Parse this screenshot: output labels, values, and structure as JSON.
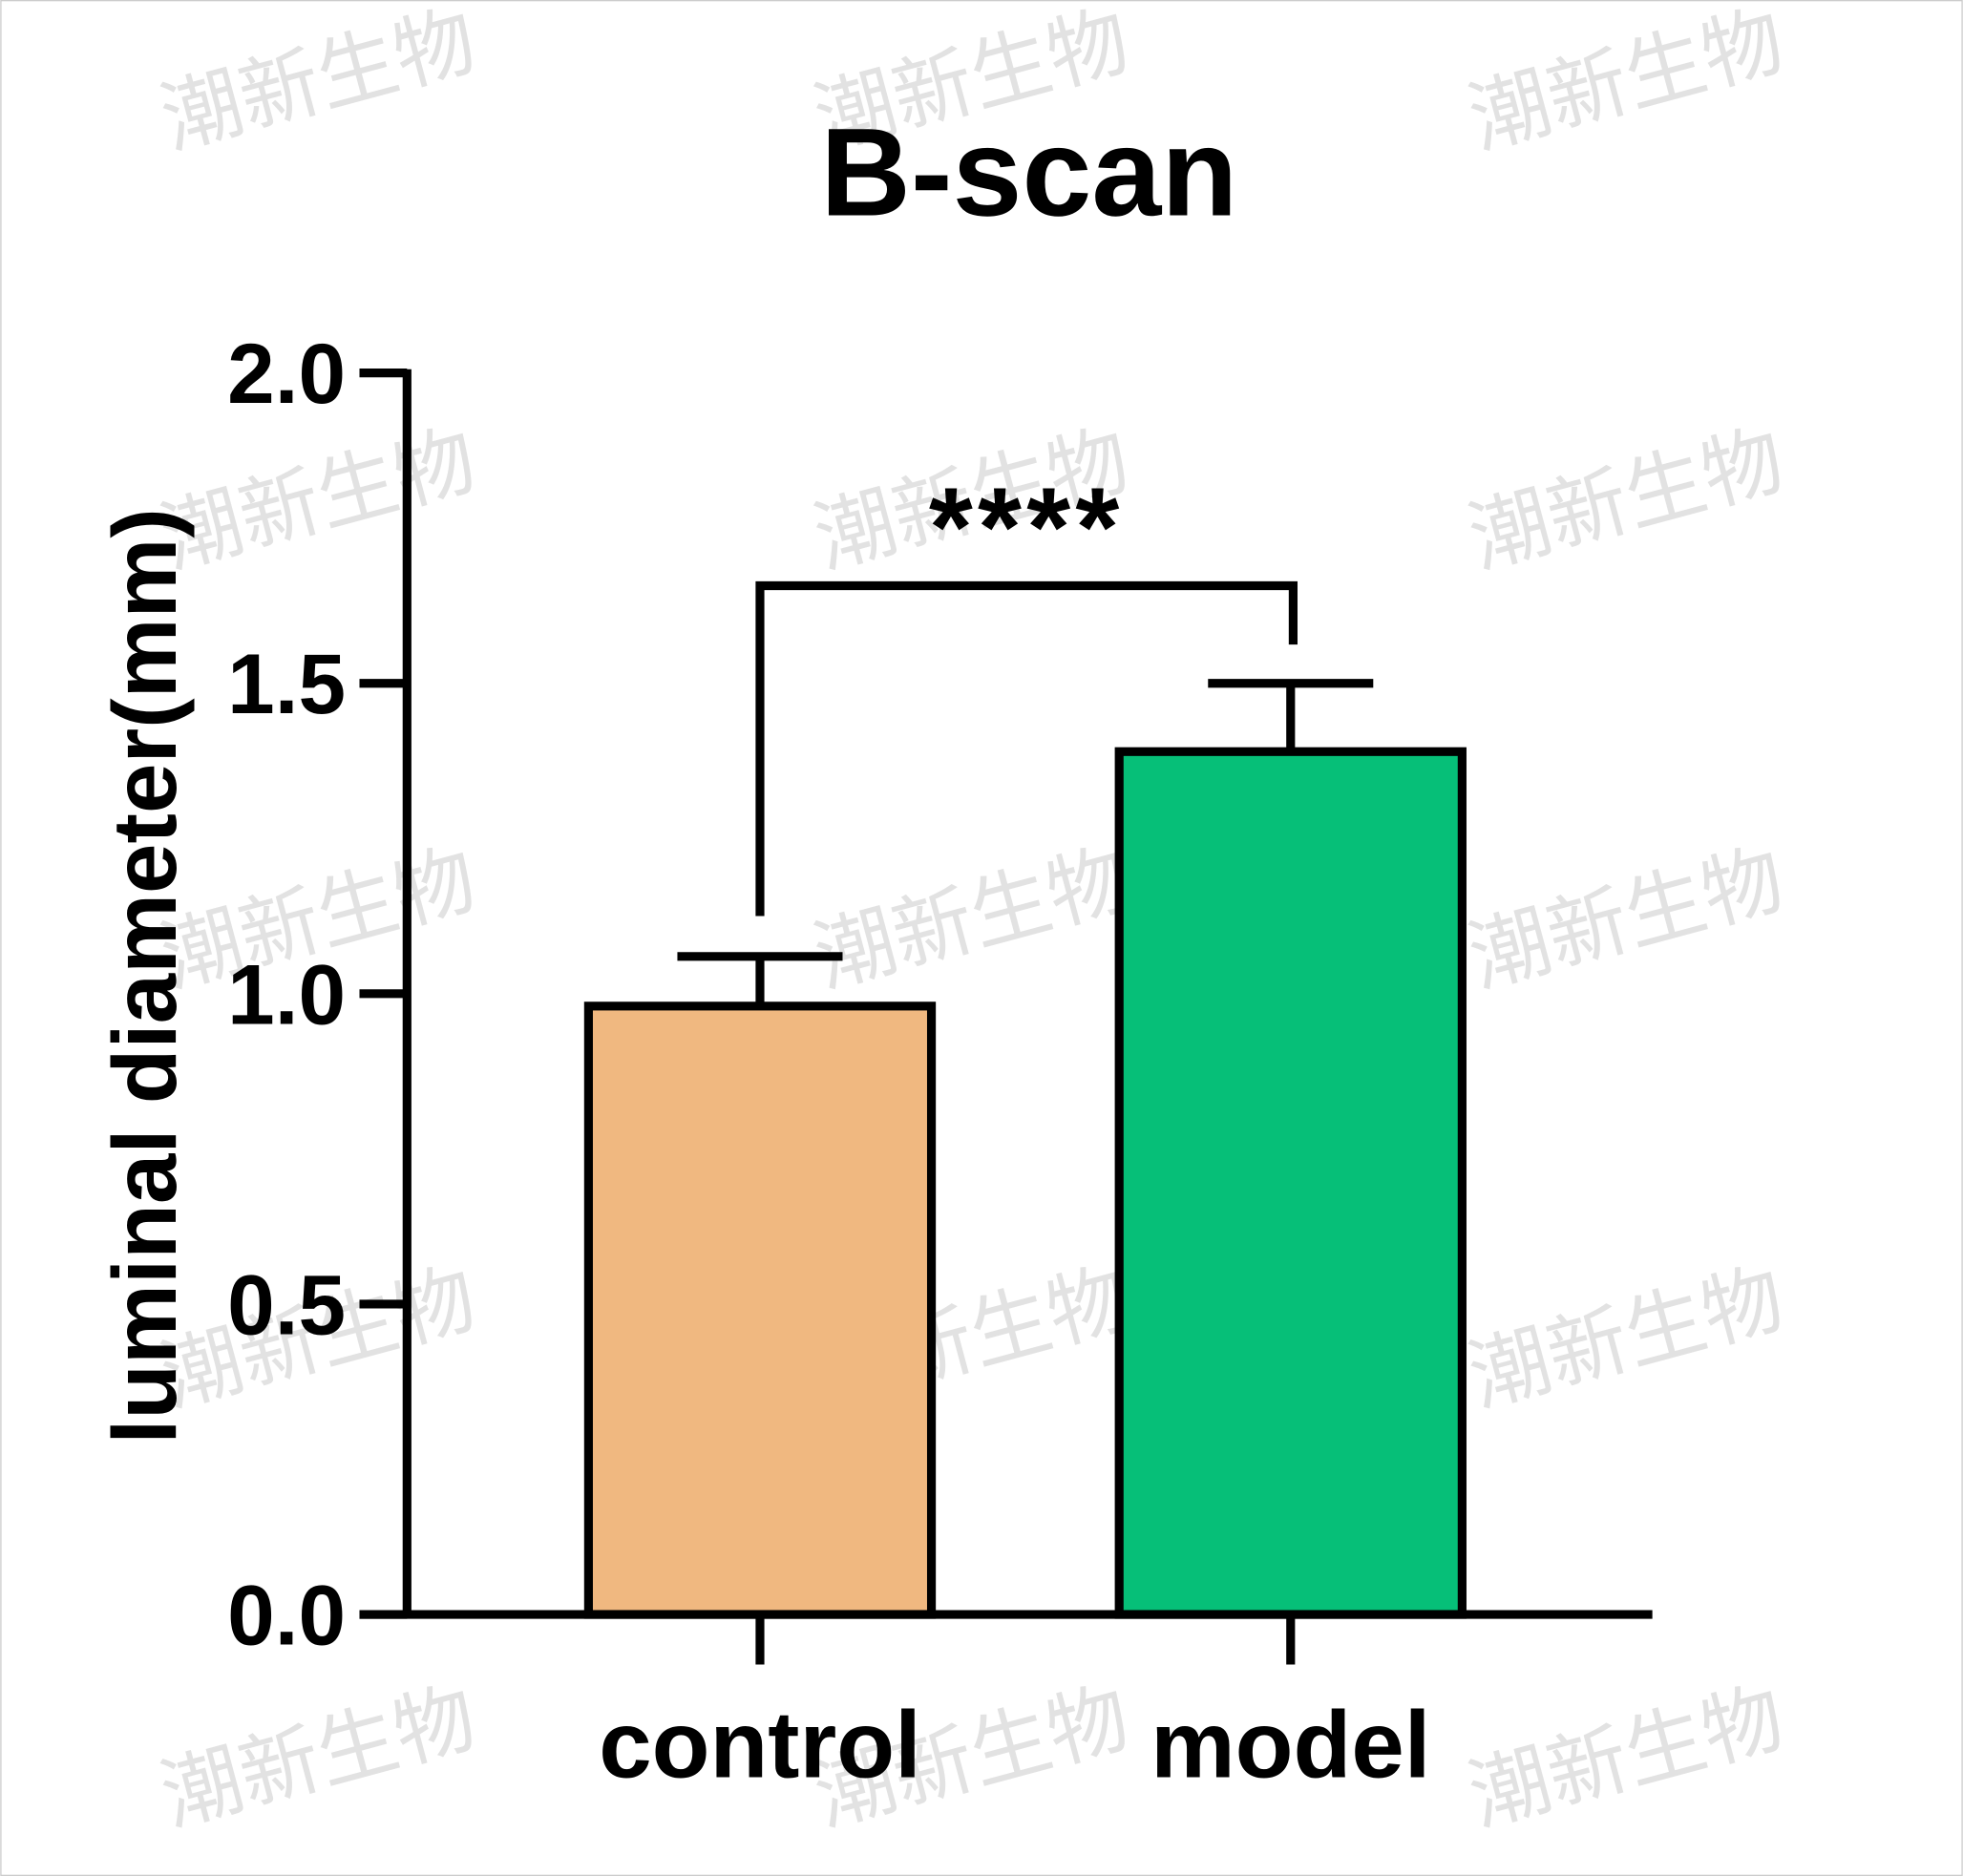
{
  "chart_data": {
    "type": "bar",
    "title": "B-scan",
    "y_label": "luminal diameter(mm)",
    "categories": [
      "control",
      "model"
    ],
    "values": [
      0.98,
      1.39
    ],
    "errors": [
      0.08,
      0.11
    ],
    "colors": [
      "#f0b880",
      "#06bf78"
    ],
    "ylim": [
      0,
      2
    ],
    "yticks": [
      {
        "value": 0,
        "label": "0.0"
      },
      {
        "value": 0.5,
        "label": "0.5"
      },
      {
        "value": 1,
        "label": "1.0"
      },
      {
        "value": 1.5,
        "label": "1.5"
      },
      {
        "value": 2,
        "label": "2.0"
      }
    ],
    "grid": false,
    "annotation": "****",
    "watermark": "潮新生物"
  }
}
